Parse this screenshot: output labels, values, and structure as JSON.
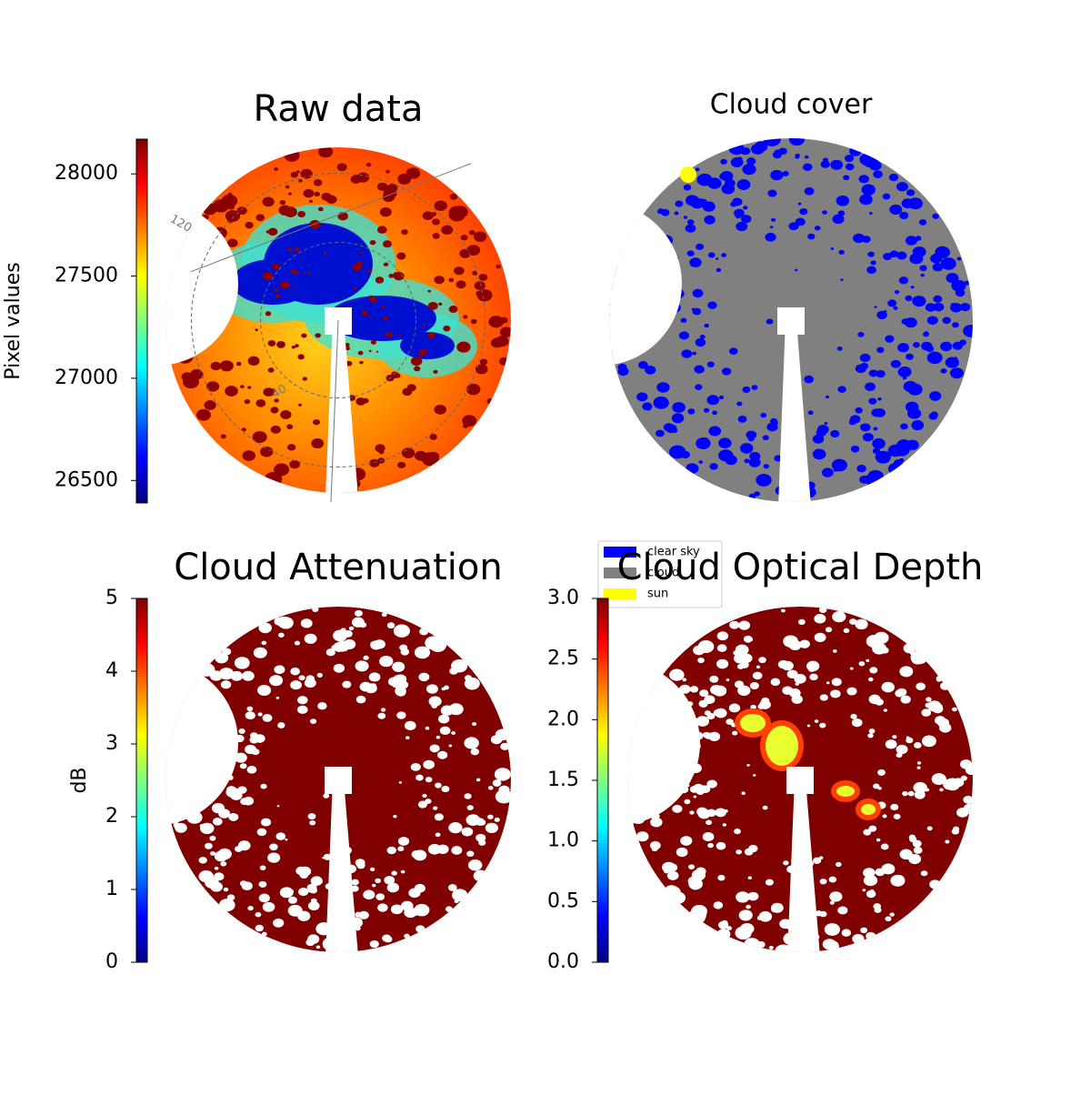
{
  "chart_data": [
    {
      "type": "image",
      "title": "Raw data",
      "colorbar": {
        "label": "Pixel values",
        "cmap": "jet",
        "lim": [
          26390,
          28170
        ],
        "ticks": [
          26500,
          27000,
          27500,
          28000
        ]
      },
      "annotations": [
        "120",
        "40"
      ]
    },
    {
      "type": "image",
      "title": "Cloud cover",
      "legend": {
        "items": [
          {
            "name": "clear sky",
            "color": "#0000ff"
          },
          {
            "name": "cloud",
            "color": "#808080"
          },
          {
            "name": "sun",
            "color": "#ffff00"
          }
        ]
      }
    },
    {
      "type": "image",
      "title": "Cloud Attenuation",
      "colorbar": {
        "label": "dB",
        "cmap": "jet",
        "lim": [
          0,
          5
        ],
        "ticks": [
          0,
          1,
          2,
          3,
          4,
          5
        ]
      }
    },
    {
      "type": "image",
      "title": "Cloud Optical Depth",
      "colorbar": {
        "cmap": "jet",
        "lim": [
          0,
          3
        ],
        "ticks": [
          {
            "value": 0,
            "label": "0.0"
          },
          0.5,
          {
            "value": 1,
            "label": "1.0"
          },
          1.5,
          {
            "value": 2,
            "label": "2.0"
          },
          2.5,
          {
            "value": 3,
            "label": "3.0"
          }
        ]
      }
    }
  ]
}
